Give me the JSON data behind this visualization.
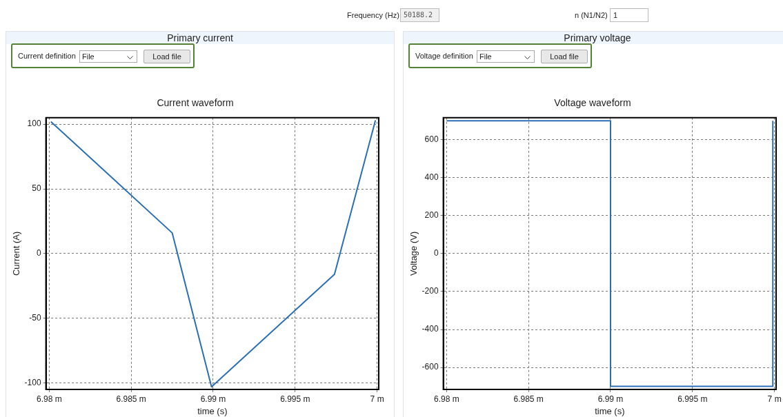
{
  "chart_data": [
    {
      "type": "other",
      "annotations": [
        "Frequency (Hz)",
        "50188.2",
        "n (N1/N2)",
        "1"
      ]
    },
    {
      "type": "line",
      "title": "Current waveform",
      "xlabel": "time (s)",
      "ylabel": "Current (A)",
      "annotations": [
        "Primary current",
        "Current definition",
        "File",
        "Load file"
      ],
      "grid": true,
      "xlim": [
        6.9798,
        7.0001
      ],
      "ylim": [
        -105,
        105
      ],
      "xticks": [
        {
          "value": 6.98,
          "label": "6.98 m"
        },
        {
          "value": 6.985,
          "label": "6.985 m"
        },
        {
          "value": 6.99,
          "label": "6.99 m"
        },
        {
          "value": 6.995,
          "label": "6.995 m"
        },
        {
          "value": 7,
          "label": "7 m"
        }
      ],
      "yticks": [
        -100,
        -50,
        0,
        50,
        100
      ],
      "series": [
        {
          "color": "#2a6fb5",
          "x": [
            6.9801,
            6.9875,
            6.9899,
            6.9974,
            6.9999
          ],
          "values": [
            102,
            16,
            -103,
            -16,
            103
          ]
        }
      ]
    },
    {
      "type": "line",
      "title": "Voltage waveform",
      "xlabel": "time (s)",
      "ylabel": "Voltage (V)",
      "annotations": [
        "Primary voltage",
        "Voltage definition",
        "File",
        "Load file"
      ],
      "grid": true,
      "xlim": [
        6.9798,
        7.0001
      ],
      "ylim": [
        -716,
        716
      ],
      "xticks": [
        {
          "value": 6.98,
          "label": "6.98 m"
        },
        {
          "value": 6.985,
          "label": "6.985 m"
        },
        {
          "value": 6.99,
          "label": "6.99 m"
        },
        {
          "value": 6.995,
          "label": "6.995 m"
        },
        {
          "value": 7,
          "label": "7 m"
        }
      ],
      "yticks": [
        -600,
        -400,
        -200,
        0,
        200,
        400,
        600
      ],
      "series": [
        {
          "color": "#2a6fb5",
          "x": [
            6.98,
            6.99,
            6.99,
            6.9999,
            6.9999
          ],
          "values": [
            700,
            700,
            -700,
            -700,
            700
          ]
        }
      ]
    }
  ]
}
